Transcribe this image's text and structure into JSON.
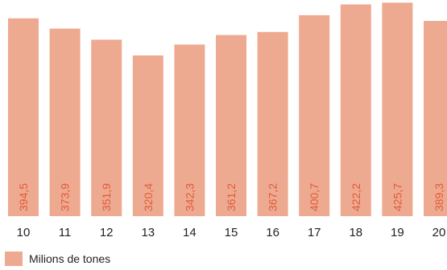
{
  "chart_data": {
    "type": "bar",
    "categories": [
      "10",
      "11",
      "12",
      "13",
      "14",
      "15",
      "16",
      "17",
      "18",
      "19",
      "20"
    ],
    "series": [
      {
        "name": "Milions de tones",
        "values": [
          394.5,
          373.9,
          351.9,
          320.4,
          342.3,
          361.2,
          367.2,
          400.7,
          422.2,
          425.7,
          389.3
        ],
        "labels": [
          "394,5",
          "373,9",
          "351,9",
          "320,4",
          "342,3",
          "361,2",
          "367,2",
          "400,7",
          "422,2",
          "425,7",
          "389,3"
        ]
      }
    ],
    "legend_position": "bottom-left",
    "grid": false,
    "ylim": [
      0,
      431
    ],
    "colors": {
      "bar": "#EEAA90",
      "value_label": "#E05A3A",
      "tick_label": "#222222"
    }
  }
}
